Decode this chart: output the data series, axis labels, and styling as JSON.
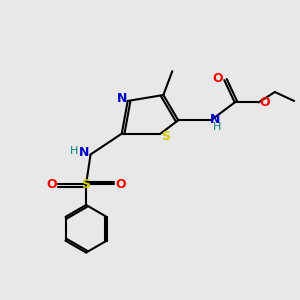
{
  "background_color": "#e8e8e8",
  "bond_color": "#000000",
  "colors": {
    "N": "#0000cd",
    "S_thiazole": "#cccc00",
    "S_sulfonyl": "#cccc00",
    "O": "#ff0000",
    "C": "#000000",
    "H": "#008080"
  },
  "figsize": [
    3.0,
    3.0
  ],
  "dpi": 100
}
